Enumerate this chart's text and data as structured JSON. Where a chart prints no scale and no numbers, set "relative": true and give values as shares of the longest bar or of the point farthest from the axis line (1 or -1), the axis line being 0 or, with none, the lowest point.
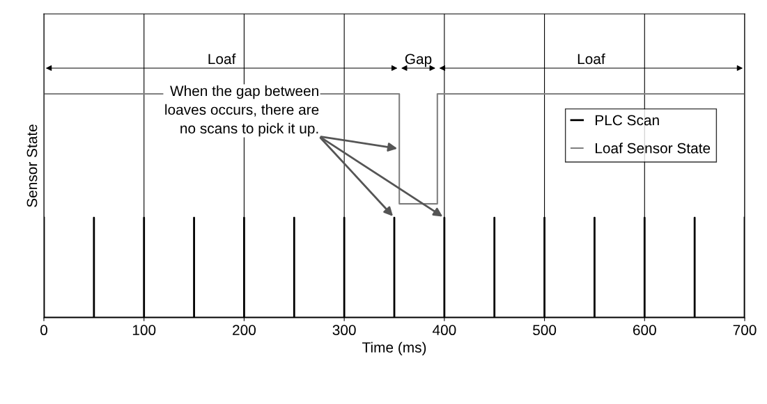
{
  "chart_data": {
    "type": "line",
    "relative": true,
    "xlabel": "Time (ms)",
    "ylabel": "Sensor State",
    "xlim": [
      0,
      700
    ],
    "xticks": [
      0,
      100,
      200,
      300,
      400,
      500,
      600,
      700
    ],
    "grid": "x",
    "legend": "right",
    "series": [
      {
        "name": "PLC Scan",
        "color": "#000000",
        "x": [
          0,
          0,
          0,
          50,
          50,
          50,
          100,
          100,
          100,
          150,
          150,
          150,
          200,
          200,
          200,
          250,
          250,
          250,
          300,
          300,
          300,
          350,
          350,
          350,
          400,
          400,
          400,
          450,
          450,
          450,
          500,
          500,
          500,
          550,
          550,
          550,
          600,
          600,
          600,
          650,
          650,
          650,
          700,
          700
        ],
        "values": [
          0.447,
          0,
          0,
          0,
          0.447,
          0,
          0,
          0.447,
          0,
          0,
          0.447,
          0,
          0,
          0.447,
          0,
          0,
          0.447,
          0,
          0,
          0.447,
          0,
          0,
          0.447,
          0,
          0,
          0.447,
          0,
          0,
          0.447,
          0,
          0,
          0.447,
          0,
          0,
          0.447,
          0,
          0,
          0.447,
          0,
          0,
          0.447,
          0,
          0,
          0.447
        ]
      },
      {
        "name": "Loaf Sensor State",
        "color": "#808080",
        "x": [
          0,
          355,
          355,
          393,
          393,
          700
        ],
        "values": [
          1,
          1,
          0.509,
          0.509,
          1,
          1
        ]
      }
    ],
    "annotations": [
      "Loaf",
      "Gap",
      "Loaf",
      "When the gap between\nloaves occurs, there are\nno scans to pick it up."
    ]
  }
}
